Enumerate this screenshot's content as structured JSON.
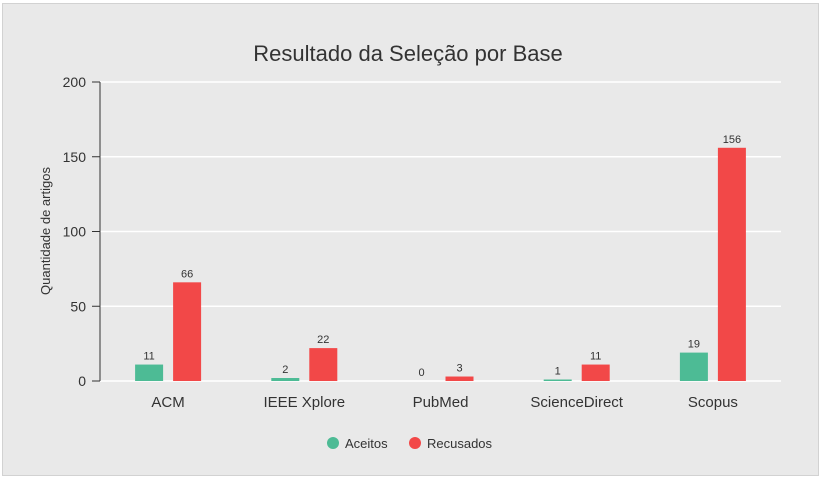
{
  "chart_data": {
    "type": "bar",
    "title": "Resultado da Seleção por Base",
    "ylabel": "Quantidade de artigos",
    "xlabel": "",
    "ylim": [
      0,
      200
    ],
    "yticks": [
      0,
      50,
      100,
      150,
      200
    ],
    "grid": true,
    "legend_position": "bottom-center",
    "categories": [
      "ACM",
      "IEEE Xplore",
      "PubMed",
      "ScienceDirect",
      "Scopus"
    ],
    "series": [
      {
        "name": "Aceitos",
        "color": "#4dbb95",
        "values": [
          11,
          2,
          0,
          1,
          19
        ]
      },
      {
        "name": "Recusados",
        "color": "#f24848",
        "values": [
          66,
          22,
          3,
          11,
          156
        ]
      }
    ]
  }
}
